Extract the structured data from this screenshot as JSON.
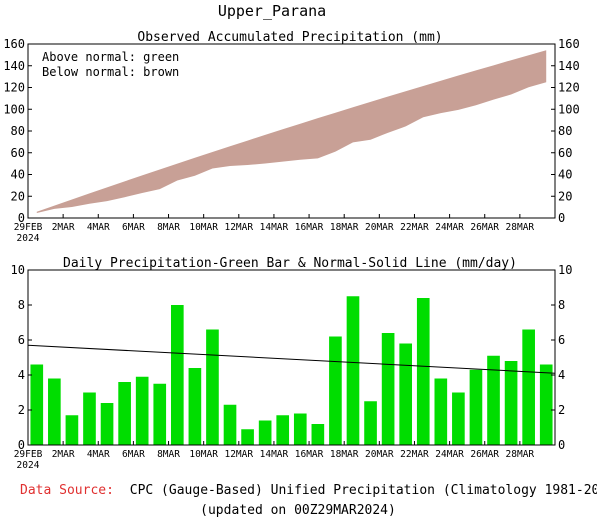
{
  "page": {
    "title": "Upper_Parana",
    "source_label": "Data Source:",
    "source_text": "CPC (Gauge-Based) Unified Precipitation (Climatology 1981-2010)",
    "updated_text": "(updated on 00Z29MAR2024)"
  },
  "colors": {
    "above_normal": "#00dd00",
    "below_normal": "#c8a096",
    "bar": "#00dd00",
    "line": "#000000",
    "source_label": "#e03030"
  },
  "chart_data": [
    {
      "type": "area",
      "title": "Observed Accumulated Precipitation (mm)",
      "legend": [
        "Above normal: green",
        "Below normal: brown"
      ],
      "legend_position": "top-left",
      "ylim": [
        0,
        160
      ],
      "yticks": [
        0,
        20,
        40,
        60,
        80,
        100,
        120,
        140,
        160
      ],
      "xtick_labels": [
        "29FEB",
        "2MAR",
        "4MAR",
        "6MAR",
        "8MAR",
        "10MAR",
        "12MAR",
        "14MAR",
        "16MAR",
        "18MAR",
        "20MAR",
        "22MAR",
        "24MAR",
        "26MAR",
        "28MAR"
      ],
      "xtick_year": "2024",
      "grid": false,
      "series": [
        {
          "values": [
            4.6,
            8.4,
            10.1,
            13.1,
            15.5,
            19.1,
            23.0,
            26.5,
            34.5,
            38.9,
            45.5,
            47.8,
            48.7,
            50.1,
            51.8,
            53.6,
            54.8,
            61.0,
            69.5,
            72.0,
            78.4,
            84.2,
            92.6,
            96.4,
            99.4,
            103.7,
            108.8,
            113.6,
            120.2,
            124.8
          ]
        },
        {
          "values": [
            5.7,
            11.4,
            17.0,
            22.6,
            28.2,
            33.7,
            39.2,
            44.6,
            50.0,
            55.4,
            60.7,
            66.0,
            71.2,
            76.4,
            81.6,
            86.7,
            91.8,
            96.8,
            101.8,
            106.8,
            111.7,
            116.6,
            121.4,
            126.2,
            131.0,
            135.7,
            140.4,
            145.1,
            149.7,
            154.3
          ]
        }
      ]
    },
    {
      "type": "bar",
      "title": "Daily Precipitation-Green Bar & Normal-Solid Line (mm/day)",
      "ylim": [
        0,
        10
      ],
      "yticks": [
        0,
        2,
        4,
        6,
        8,
        10
      ],
      "xtick_labels": [
        "29FEB",
        "2MAR",
        "4MAR",
        "6MAR",
        "8MAR",
        "10MAR",
        "12MAR",
        "14MAR",
        "16MAR",
        "18MAR",
        "20MAR",
        "22MAR",
        "24MAR",
        "26MAR",
        "28MAR"
      ],
      "xtick_year": "2024",
      "grid": false,
      "values": [
        4.6,
        3.8,
        1.7,
        3.0,
        2.4,
        3.6,
        3.9,
        3.5,
        8.0,
        4.4,
        6.6,
        2.3,
        0.9,
        1.4,
        1.7,
        1.8,
        1.2,
        6.2,
        8.5,
        2.5,
        6.4,
        5.8,
        8.4,
        3.8,
        3.0,
        4.3,
        5.1,
        4.8,
        6.6,
        4.6
      ],
      "normal_line": [
        5.7,
        4.1
      ]
    }
  ]
}
